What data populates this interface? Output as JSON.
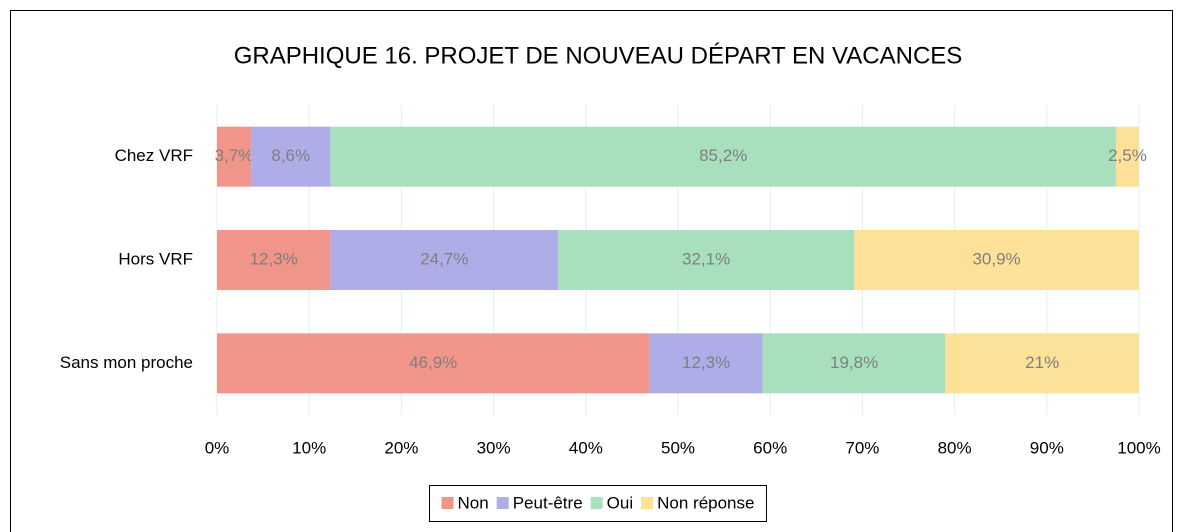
{
  "chart_data": {
    "type": "stacked_barh",
    "title": "GRAPHIQUE 16. PROJET DE NOUVEAU DÉPART EN VACANCES",
    "categories": [
      "Chez VRF",
      "Hors VRF",
      "Sans mon proche"
    ],
    "series": [
      {
        "name": "Non",
        "color": "#f1958b",
        "values": [
          3.7,
          12.3,
          46.9
        ],
        "value_labels": [
          "3,7%",
          "12,3%",
          "46,9%"
        ]
      },
      {
        "name": "Peut-être",
        "color": "#aeade8",
        "values": [
          8.6,
          24.7,
          12.3
        ],
        "value_labels": [
          "8,6%",
          "24,7%",
          "12,3%"
        ]
      },
      {
        "name": "Oui",
        "color": "#a8e0bd",
        "values": [
          85.2,
          32.1,
          19.8
        ],
        "value_labels": [
          "85,2%",
          "32,1%",
          "19,8%"
        ]
      },
      {
        "name": "Non réponse",
        "color": "#fde198",
        "values": [
          2.5,
          30.9,
          21
        ],
        "value_labels": [
          "2,5%",
          "30,9%",
          "21%"
        ]
      }
    ],
    "xlim": [
      0,
      100
    ],
    "xticks": [
      {
        "value": 0,
        "label": "0%"
      },
      {
        "value": 10,
        "label": "10%"
      },
      {
        "value": 20,
        "label": "20%"
      },
      {
        "value": 30,
        "label": "30%"
      },
      {
        "value": 40,
        "label": "40%"
      },
      {
        "value": 50,
        "label": "50%"
      },
      {
        "value": 60,
        "label": "60%"
      },
      {
        "value": 70,
        "label": "70%"
      },
      {
        "value": 80,
        "label": "80%"
      },
      {
        "value": 90,
        "label": "90%"
      },
      {
        "value": 100,
        "label": "100%"
      }
    ],
    "grid": true,
    "legend": "bottom"
  }
}
